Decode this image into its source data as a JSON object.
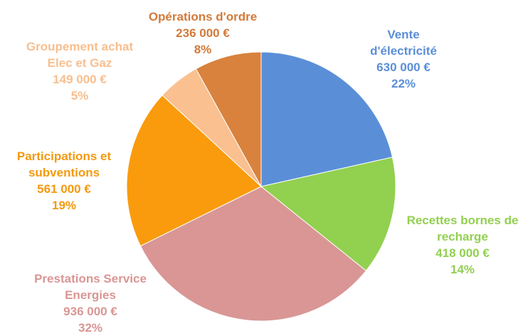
{
  "chart_data": {
    "type": "pie",
    "categories": [
      "Vente\nd'électricité",
      "Recettes bornes de\nrecharge",
      "Prestations Service\nEnergies",
      "Participations et\nsubventions",
      "Groupement achat\nElec et Gaz",
      "Opérations d'ordre"
    ],
    "values": [
      630000,
      418000,
      936000,
      561000,
      149000,
      236000
    ],
    "value_labels": [
      "630 000 €",
      "418 000 €",
      "936 000 €",
      "561 000 €",
      "149 000 €",
      "236 000 €"
    ],
    "percents": [
      22,
      14,
      32,
      19,
      5,
      8
    ],
    "percent_labels": [
      "22%",
      "14%",
      "32%",
      "19%",
      "5%",
      "8%"
    ],
    "colors": [
      "#5a8fd8",
      "#92d050",
      "#d99694",
      "#f99b0c",
      "#fac08f",
      "#d8823d"
    ],
    "label_colors": [
      "#5a8fd8",
      "#92d050",
      "#d99694",
      "#f4990f",
      "#f8bf8e",
      "#d27a39"
    ]
  }
}
